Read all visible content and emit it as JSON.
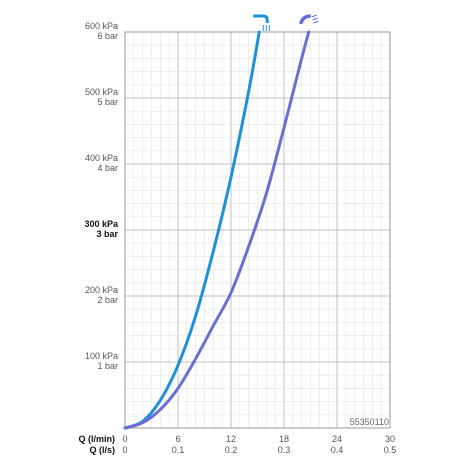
{
  "chart_data": {
    "type": "line",
    "code": "55350110",
    "x_axes": [
      {
        "label": "Q (l/min)",
        "ticks": [
          "0",
          "6",
          "12",
          "18",
          "24",
          "30"
        ],
        "values": [
          0,
          6,
          12,
          18,
          24,
          30
        ]
      },
      {
        "label": "Q (l/s)",
        "ticks": [
          "0",
          "0.1",
          "0.2",
          "0.3",
          "0.4",
          "0.5"
        ],
        "values": [
          0,
          0.1,
          0.2,
          0.3,
          0.4,
          0.5
        ]
      }
    ],
    "y_ticks": [
      {
        "value": 100,
        "kpa": "100 kPa",
        "bar": "1 bar",
        "bold": false
      },
      {
        "value": 200,
        "kpa": "200 kPa",
        "bar": "2 bar",
        "bold": false
      },
      {
        "value": 300,
        "kpa": "300 kPa",
        "bar": "3 bar",
        "bold": true
      },
      {
        "value": 400,
        "kpa": "400 kPa",
        "bar": "4 bar",
        "bold": false
      },
      {
        "value": 500,
        "kpa": "500 kPa",
        "bar": "5 bar",
        "bold": false
      },
      {
        "value": 600,
        "kpa": "600 kPa",
        "bar": "6 bar",
        "bold": false
      }
    ],
    "xlim": [
      0,
      30
    ],
    "ylim": [
      0,
      600
    ],
    "grid": true,
    "series": [
      {
        "icon": "rain-spray-icon",
        "color": "#1f8fd8",
        "x": [
          0,
          2,
          4,
          6,
          8,
          10,
          12,
          14,
          15.2
        ],
        "y": [
          0,
          10,
          42,
          95,
          170,
          268,
          380,
          510,
          600
        ]
      },
      {
        "icon": "jet-spray-icon",
        "color": "#6a6fd0",
        "x": [
          0,
          2,
          4,
          6,
          8,
          10,
          12,
          14,
          16,
          18,
          20,
          20.8
        ],
        "y": [
          0,
          8,
          28,
          60,
          105,
          155,
          205,
          275,
          355,
          455,
          560,
          600
        ]
      }
    ]
  }
}
